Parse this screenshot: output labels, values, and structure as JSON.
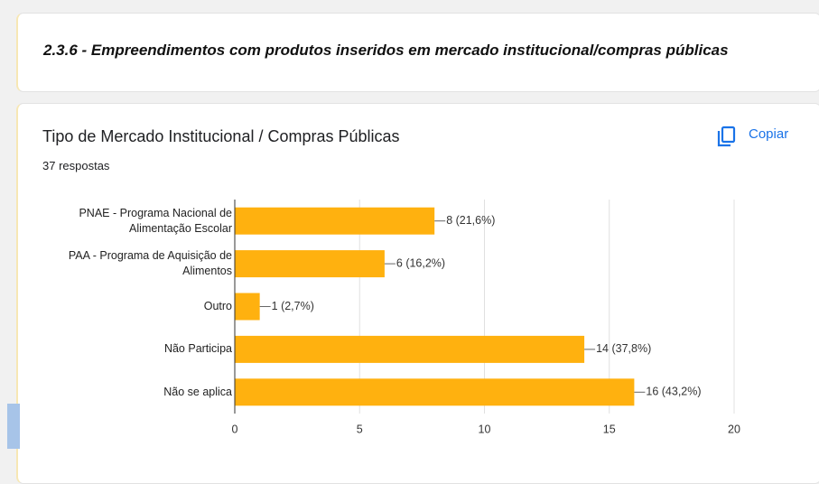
{
  "section_title": "2.3.6 - Empreendimentos com produtos inseridos em mercado institucional/compras públicas",
  "copy_button": "Copiar",
  "chart_data": {
    "type": "hbar",
    "title": "Tipo de Mercado Institucional / Compras Públicas",
    "subtitle": "37 respostas",
    "categories": [
      "PNAE - Programa Nacional de Alimentação Escolar",
      "PAA - Programa de Aquisição de Alimentos",
      "Outro",
      "Não Participa",
      "Não se aplica"
    ],
    "values": [
      8,
      6,
      1,
      14,
      16
    ],
    "value_labels": [
      "8 (21,6%)",
      "6 (16,2%)",
      "1 (2,7%)",
      "14 (37,8%)",
      "16 (43,2%)"
    ],
    "color": "#ffb10f",
    "xlim": [
      0,
      20
    ],
    "xticks": [
      0,
      5,
      10,
      15,
      20
    ],
    "grid": true
  }
}
